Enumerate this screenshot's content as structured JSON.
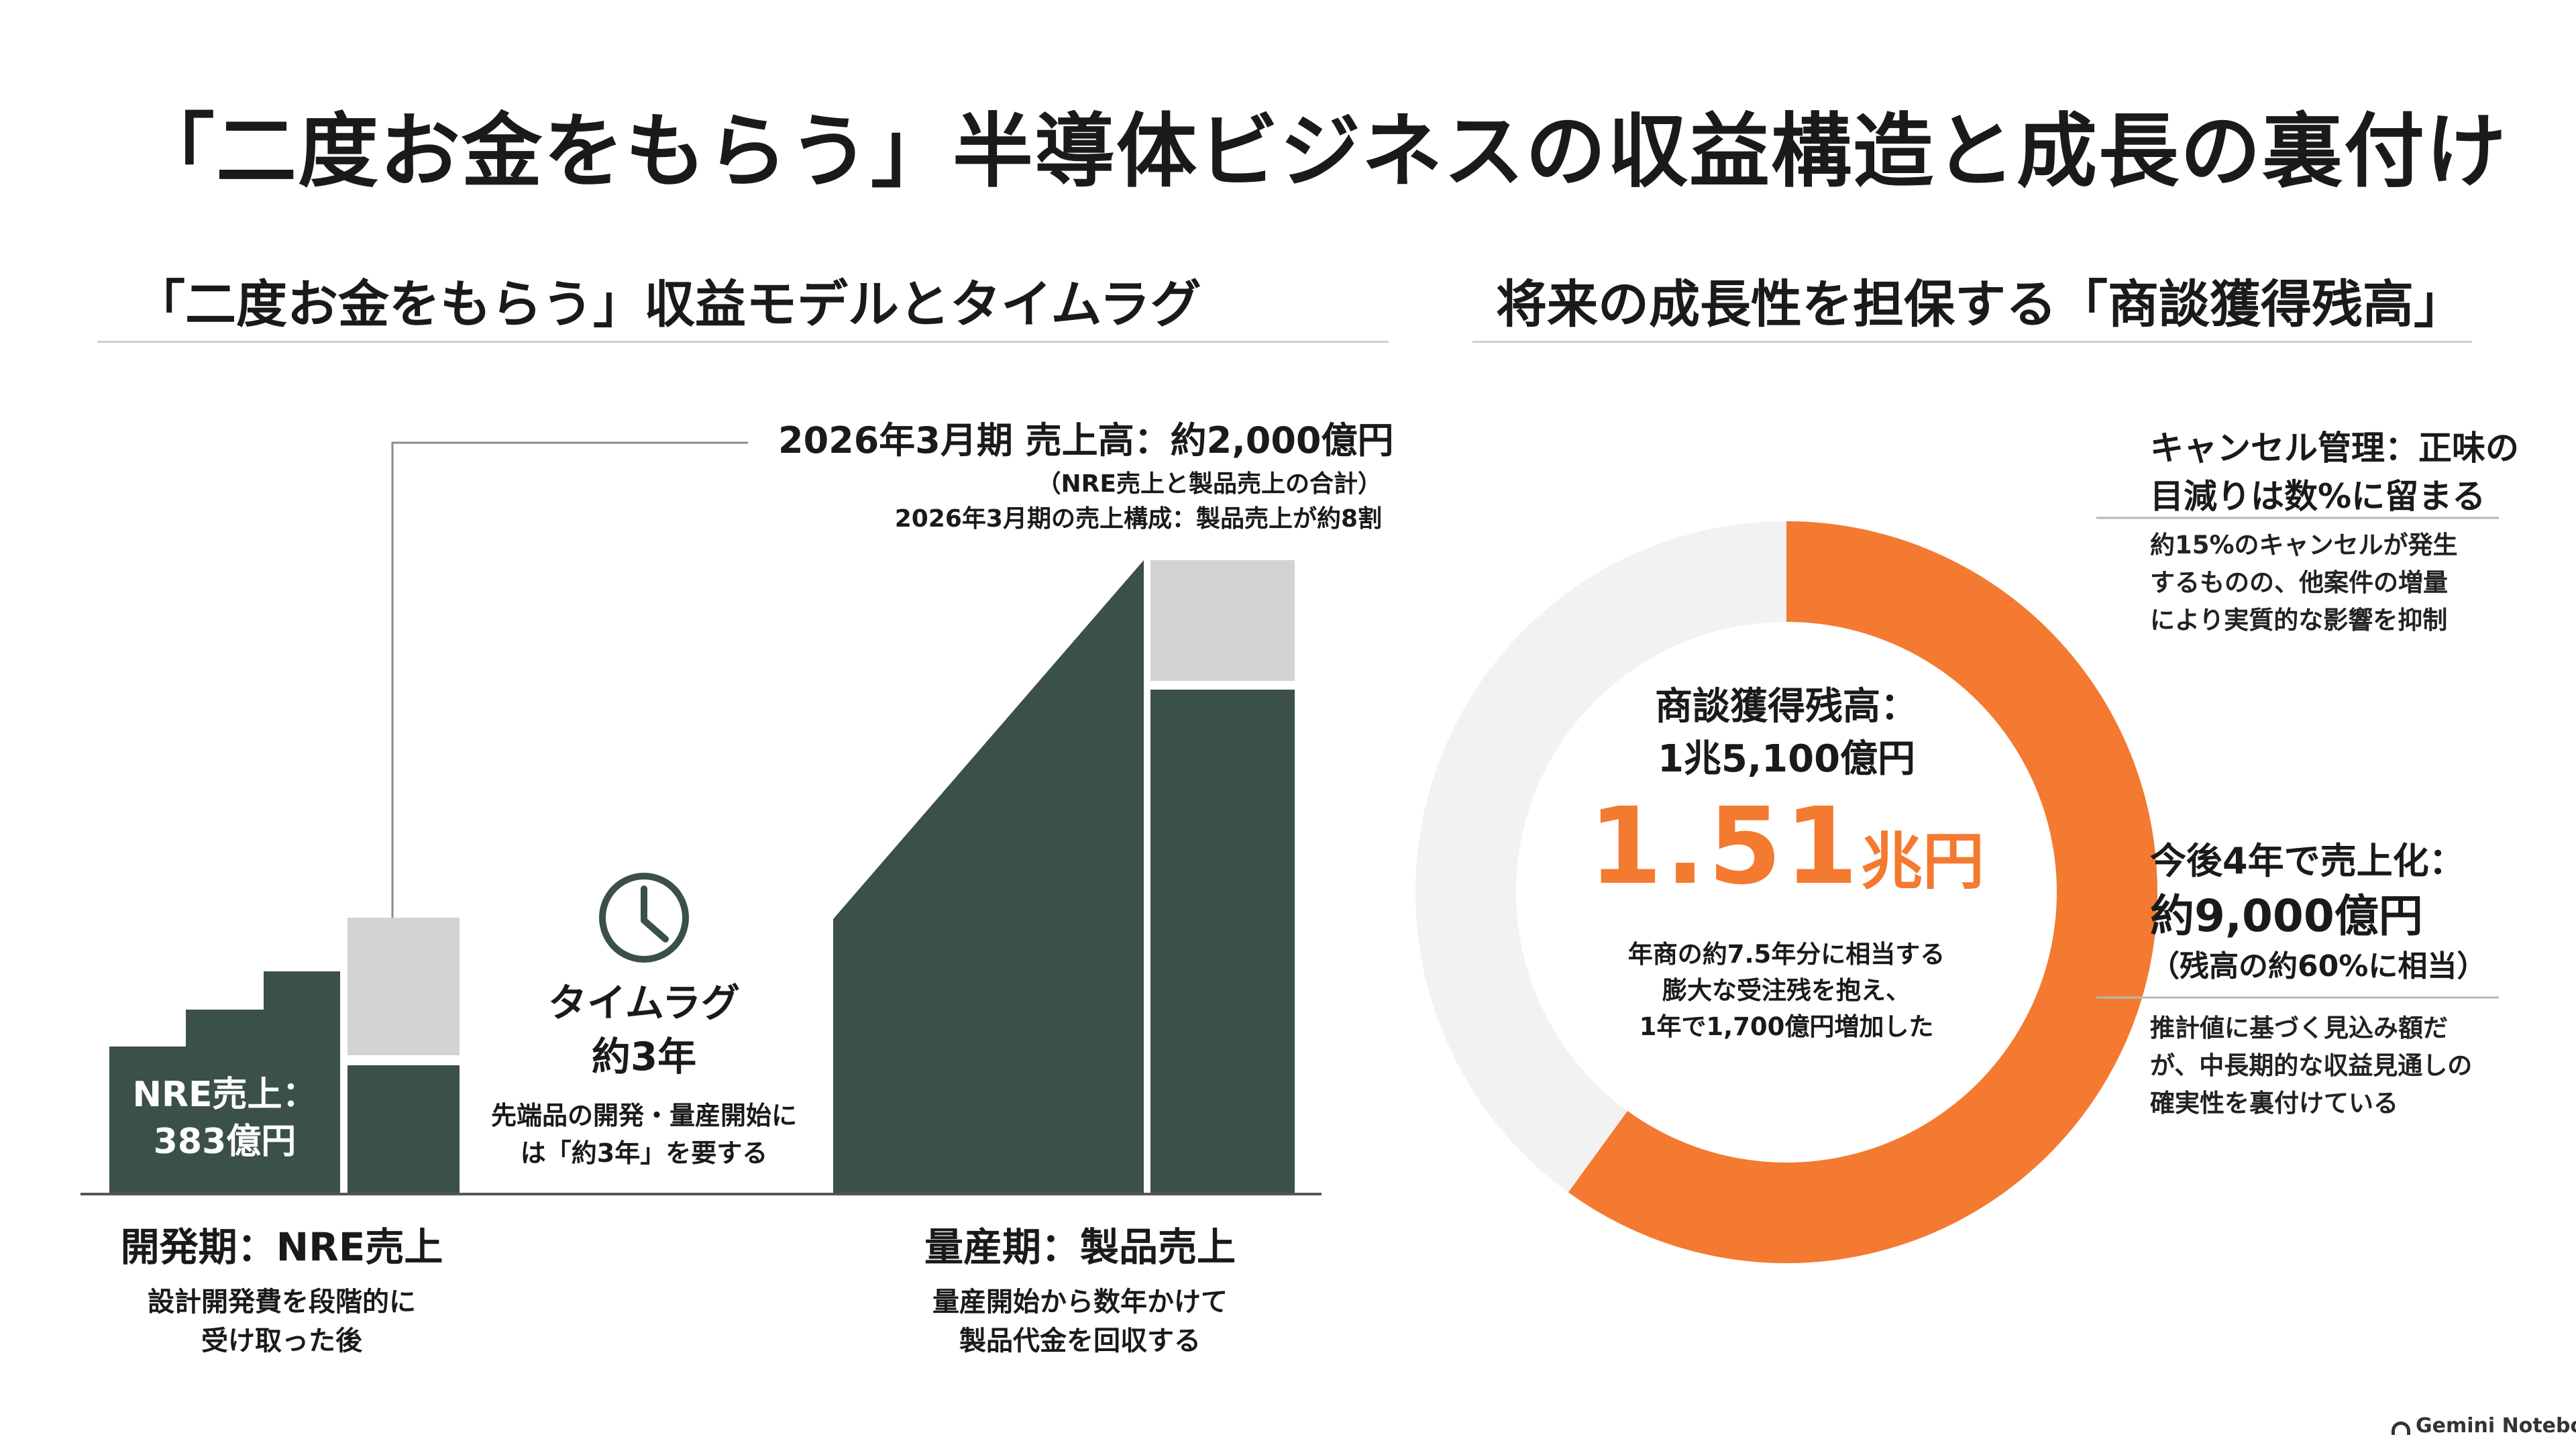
{
  "title": "「二度お金をもらう」半導体ビジネスの収益構造と成長の裏付け",
  "left": {
    "heading": "「二度お金をもらう」収益モデルとタイムラグ",
    "nre_label": [
      "NRE売上：",
      "383億円"
    ],
    "revenue_callout": "2026年3月期 売上高：約2,000億円",
    "revenue_note1": "（NRE売上と製品売上の合計）",
    "revenue_note2": "2026年3月期の売上構成：製品売上が約8割",
    "timelag_title1": "タイムラグ",
    "timelag_title2": "約3年",
    "timelag_desc1": "先端品の開発・量産開始に",
    "timelag_desc2": "は「約3年」を要する",
    "phase1_title": "開発期：NRE売上",
    "phase1_desc1": "設計開発費を段階的に",
    "phase1_desc2": "受け取った後",
    "phase2_title": "量産期：製品売上",
    "phase2_desc1": "量産開始から数年かけて",
    "phase2_desc2": "製品代金を回収する",
    "icon": "clock-icon"
  },
  "right": {
    "heading": "将来の成長性を担保する「商談獲得残高」",
    "donut": {
      "label1": "商談獲得残高：",
      "label2": "1兆5,100億円",
      "big_value": "1.51",
      "big_unit": "兆円",
      "desc1": "年商の約7.5年分に相当する",
      "desc2": "膨大な受注残を抱え、",
      "desc3": "1年で1,700億円増加した",
      "fill_fraction": 0.6,
      "fill_color": "#f37a30",
      "track_color": "#f2f2f2"
    },
    "cancel_head1": "キャンセル管理：正味の",
    "cancel_head2": "目減りは数%に留まる",
    "cancel_body1": "約15%のキャンセルが発生",
    "cancel_body2": "するものの、他案件の増量",
    "cancel_body3": "により実質的な影響を抑制",
    "sales_head1": "今後4年で売上化：",
    "sales_head2": "約9,000億円",
    "sales_head3": "（残高の約60%に相当）",
    "sales_body1": "推計値に基づく見込み額だ",
    "sales_body2": "が、中長期的な収益見通しの",
    "sales_body3": "確実性を裏付けている"
  },
  "footer": {
    "brand": "Gemini Notebook",
    "icon": "gemini-notebook-logo-icon"
  },
  "colors": {
    "green": "#3b5046",
    "gray": "#d3d3d3",
    "orange": "#f37a30"
  }
}
